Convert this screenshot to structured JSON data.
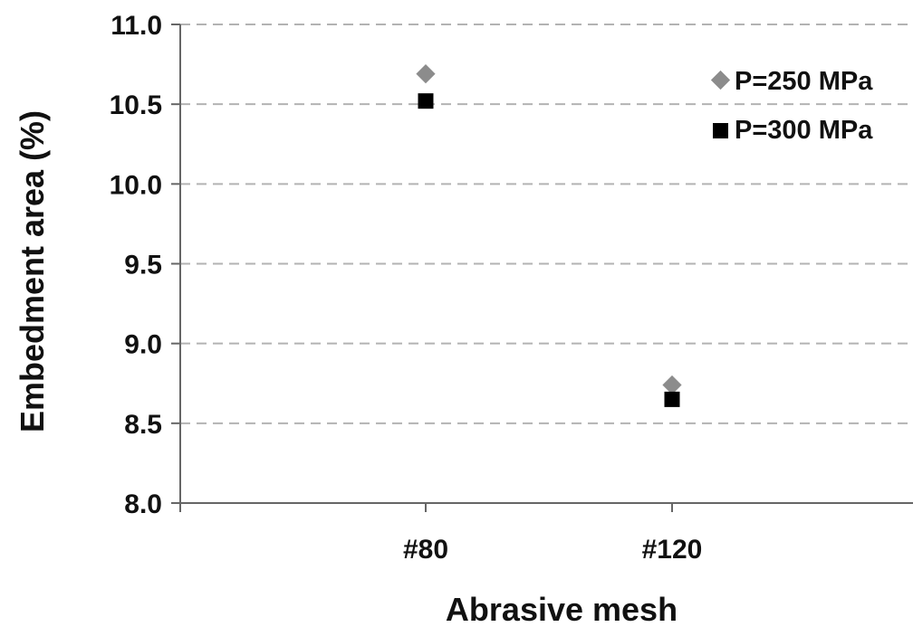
{
  "chart_data": {
    "type": "scatter",
    "categories": [
      "#80",
      "#120"
    ],
    "series": [
      {
        "name": "P=250 MPa",
        "marker": "diamond",
        "color": "#8c8c8c",
        "values": [
          10.69,
          8.74
        ]
      },
      {
        "name": "P=300 MPa",
        "marker": "square",
        "color": "#000000",
        "values": [
          10.52,
          8.65
        ]
      }
    ],
    "title": "",
    "xlabel": "Abrasive mesh",
    "ylabel": "Embedment area (%)",
    "ylim": [
      8.0,
      11.0
    ],
    "yticks": [
      "8.0",
      "8.5",
      "9.0",
      "9.5",
      "10.0",
      "10.5",
      "11.0"
    ],
    "grid": "horizontal dashed",
    "legend": "top-right"
  }
}
